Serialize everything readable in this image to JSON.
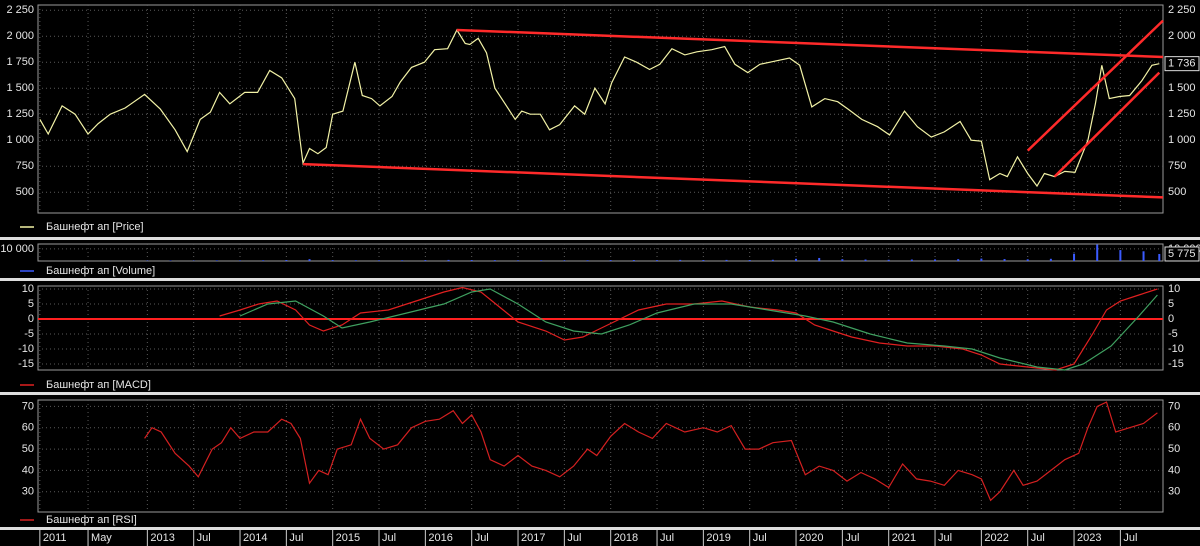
{
  "x_axis": {
    "xlim": [
      2011.82,
      2023.96
    ],
    "xticks": [
      {
        "value": 2011.84,
        "label": "2011"
      },
      {
        "value": 2012.36,
        "label": "May"
      },
      2013,
      {
        "value": 2013.5,
        "label": "Jul"
      },
      2014,
      {
        "value": 2014.5,
        "label": "Jul"
      },
      2015,
      {
        "value": 2015.5,
        "label": "Jul"
      },
      2016,
      {
        "value": 2016.5,
        "label": "Jul"
      },
      2017,
      {
        "value": 2017.5,
        "label": "Jul"
      },
      2018,
      {
        "value": 2018.5,
        "label": "Jul"
      },
      2019,
      {
        "value": 2019.5,
        "label": "Jul"
      },
      2020,
      {
        "value": 2020.5,
        "label": "Jul"
      },
      2021,
      {
        "value": 2021.5,
        "label": "Jul"
      },
      2022,
      {
        "value": 2022.5,
        "label": "Jul"
      },
      2023,
      {
        "value": 2023.5,
        "label": "Jul"
      }
    ]
  },
  "chart_data": [
    {
      "type": "line",
      "ylim": [
        300,
        2300
      ],
      "yticks": [
        {
          "value": 2250,
          "label": "2 250"
        },
        {
          "value": 2000,
          "label": "2 000"
        },
        {
          "value": 1750,
          "label": "1 750"
        },
        {
          "value": 1500,
          "label": "1 500"
        },
        {
          "value": 1250,
          "label": "1 250"
        },
        {
          "value": 1000,
          "label": "1 000"
        },
        750,
        500
      ],
      "grid": true,
      "last_label": "1 736",
      "series": [
        {
          "name": "Башнефт ап [Price]",
          "color": "#f2f2a6",
          "x": [
            2011.84,
            2011.93,
            2012.08,
            2012.22,
            2012.36,
            2012.47,
            2012.6,
            2012.76,
            2012.97,
            2013.14,
            2013.3,
            2013.43,
            2013.57,
            2013.68,
            2013.78,
            2013.89,
            2014.05,
            2014.19,
            2014.32,
            2014.45,
            2014.59,
            2014.68,
            2014.75,
            2014.84,
            2014.93,
            2015.0,
            2015.11,
            2015.24,
            2015.32,
            2015.42,
            2015.51,
            2015.64,
            2015.73,
            2015.85,
            2015.99,
            2016.1,
            2016.24,
            2016.34,
            2016.43,
            2016.48,
            2016.57,
            2016.66,
            2016.75,
            2016.86,
            2016.97,
            2017.04,
            2017.13,
            2017.24,
            2017.34,
            2017.45,
            2017.61,
            2017.72,
            2017.83,
            2017.94,
            2018.01,
            2018.15,
            2018.28,
            2018.42,
            2018.53,
            2018.66,
            2018.8,
            2018.93,
            2019.09,
            2019.23,
            2019.34,
            2019.48,
            2019.61,
            2019.77,
            2019.93,
            2020.04,
            2020.17,
            2020.31,
            2020.45,
            2020.56,
            2020.71,
            2020.88,
            2021.01,
            2021.17,
            2021.31,
            2021.46,
            2021.6,
            2021.77,
            2021.89,
            2022.0,
            2022.09,
            2022.2,
            2022.28,
            2022.39,
            2022.5,
            2022.6,
            2022.68,
            2022.79,
            2022.9,
            2023.01,
            2023.15,
            2023.23,
            2023.3,
            2023.38,
            2023.49,
            2023.6,
            2023.73,
            2023.84,
            2023.92
          ],
          "values": [
            1200,
            1060,
            1330,
            1250,
            1060,
            1160,
            1250,
            1310,
            1440,
            1300,
            1100,
            890,
            1200,
            1270,
            1460,
            1350,
            1460,
            1460,
            1670,
            1600,
            1400,
            780,
            920,
            870,
            930,
            1250,
            1280,
            1750,
            1430,
            1400,
            1330,
            1420,
            1560,
            1700,
            1750,
            1870,
            1880,
            2060,
            1930,
            1920,
            1980,
            1840,
            1500,
            1350,
            1200,
            1280,
            1250,
            1250,
            1100,
            1150,
            1330,
            1250,
            1500,
            1350,
            1550,
            1800,
            1750,
            1680,
            1730,
            1880,
            1820,
            1850,
            1870,
            1900,
            1730,
            1650,
            1730,
            1760,
            1790,
            1720,
            1320,
            1400,
            1370,
            1300,
            1200,
            1130,
            1050,
            1280,
            1130,
            1030,
            1080,
            1180,
            1000,
            990,
            620,
            680,
            650,
            840,
            680,
            560,
            680,
            650,
            700,
            690,
            1000,
            1350,
            1720,
            1400,
            1420,
            1430,
            1570,
            1720,
            1736
          ]
        }
      ],
      "trend_lines": [
        {
          "color": "#ff2a2a",
          "x": [
            2014.68,
            2023.96
          ],
          "y": [
            770,
            450
          ]
        },
        {
          "color": "#ff2a2a",
          "x": [
            2016.34,
            2023.96
          ],
          "y": [
            2060,
            1800
          ]
        },
        {
          "color": "#ff2a2a",
          "x": [
            2022.5,
            2023.96
          ],
          "y": [
            900,
            2150
          ]
        },
        {
          "color": "#ff2a2a",
          "x": [
            2022.79,
            2023.92
          ],
          "y": [
            650,
            1650
          ]
        }
      ]
    },
    {
      "type": "bar",
      "ylim": [
        0,
        14000
      ],
      "yticks": [
        {
          "value": 10000,
          "label": "10 000"
        }
      ],
      "grid": true,
      "last_label": "5 775",
      "series": [
        {
          "name": "Башнефт ап [Volume]",
          "color": "#3b5bff",
          "x": [
            2013.0,
            2013.25,
            2013.5,
            2013.75,
            2014.0,
            2014.25,
            2014.5,
            2014.75,
            2015.0,
            2015.25,
            2015.5,
            2015.75,
            2016.0,
            2016.25,
            2016.5,
            2016.75,
            2017.0,
            2017.25,
            2017.5,
            2017.75,
            2018.0,
            2018.25,
            2018.5,
            2018.75,
            2019.0,
            2019.25,
            2019.5,
            2019.75,
            2020.0,
            2020.25,
            2020.5,
            2020.75,
            2021.0,
            2021.25,
            2021.5,
            2021.75,
            2022.0,
            2022.25,
            2022.5,
            2022.75,
            2023.0,
            2023.25,
            2023.5,
            2023.75,
            2023.92
          ],
          "values": [
            300,
            400,
            300,
            500,
            400,
            600,
            800,
            1500,
            700,
            600,
            500,
            600,
            700,
            900,
            800,
            700,
            500,
            600,
            500,
            600,
            700,
            800,
            700,
            900,
            800,
            900,
            800,
            1000,
            1800,
            2500,
            1500,
            1200,
            1000,
            1200,
            1300,
            1500,
            2000,
            1600,
            1400,
            1800,
            6000,
            13500,
            9000,
            8000,
            5775
          ]
        }
      ]
    },
    {
      "type": "line",
      "ylim": [
        -17,
        11
      ],
      "yticks": [
        10,
        5,
        0,
        -5,
        -10,
        -15
      ],
      "grid": true,
      "zero_line": {
        "value": 0,
        "color": "#ff2020"
      },
      "series": [
        {
          "name": "Башнефт ап [MACD]",
          "color": "#e02020",
          "x": [
            2013.78,
            2014.0,
            2014.2,
            2014.4,
            2014.6,
            2014.75,
            2014.9,
            2015.1,
            2015.3,
            2015.6,
            2015.9,
            2016.2,
            2016.4,
            2016.6,
            2016.8,
            2017.0,
            2017.3,
            2017.5,
            2017.7,
            2017.9,
            2018.1,
            2018.3,
            2018.6,
            2018.9,
            2019.2,
            2019.5,
            2019.8,
            2020.0,
            2020.2,
            2020.4,
            2020.6,
            2020.9,
            2021.2,
            2021.5,
            2021.8,
            2022.0,
            2022.2,
            2022.5,
            2022.8,
            2023.0,
            2023.2,
            2023.35,
            2023.5,
            2023.7,
            2023.9
          ],
          "values": [
            1,
            3,
            5,
            6,
            3,
            -2,
            -4,
            -2,
            2,
            3,
            6,
            9,
            10.5,
            9,
            4,
            -1,
            -4,
            -7,
            -6,
            -3,
            0,
            3,
            5,
            5,
            6,
            4,
            3,
            2,
            -2,
            -4,
            -6,
            -8,
            -9,
            -9,
            -10,
            -12,
            -15,
            -16,
            -17,
            -15,
            -5,
            3,
            6,
            8,
            10
          ]
        },
        {
          "color": "#3fa060",
          "x": [
            2014.0,
            2014.3,
            2014.6,
            2014.9,
            2015.1,
            2015.4,
            2015.8,
            2016.2,
            2016.5,
            2016.7,
            2017.0,
            2017.3,
            2017.6,
            2017.9,
            2018.2,
            2018.5,
            2018.9,
            2019.3,
            2019.7,
            2020.1,
            2020.4,
            2020.8,
            2021.2,
            2021.6,
            2021.9,
            2022.2,
            2022.6,
            2022.9,
            2023.1,
            2023.4,
            2023.7,
            2023.9
          ],
          "values": [
            1,
            5,
            6,
            1,
            -3,
            -1,
            2,
            5,
            9,
            10,
            5,
            -1,
            -4,
            -5,
            -2,
            2,
            5,
            5,
            3,
            1,
            -1,
            -5,
            -8,
            -9,
            -10,
            -13,
            -16,
            -17,
            -15,
            -9,
            1,
            8
          ]
        }
      ]
    },
    {
      "type": "line",
      "ylim": [
        20.5,
        73
      ],
      "yticks": [
        70,
        60,
        50,
        40,
        30
      ],
      "grid": true,
      "series": [
        {
          "name": "Башнефт ап [RSI]",
          "color": "#d42020",
          "x": [
            2012.97,
            2013.05,
            2013.15,
            2013.3,
            2013.45,
            2013.55,
            2013.7,
            2013.8,
            2013.9,
            2014.0,
            2014.15,
            2014.3,
            2014.45,
            2014.55,
            2014.65,
            2014.75,
            2014.85,
            2014.95,
            2015.05,
            2015.2,
            2015.3,
            2015.4,
            2015.55,
            2015.7,
            2015.85,
            2016.0,
            2016.15,
            2016.3,
            2016.4,
            2016.5,
            2016.6,
            2016.7,
            2016.85,
            2017.0,
            2017.15,
            2017.3,
            2017.45,
            2017.6,
            2017.75,
            2017.85,
            2018.0,
            2018.15,
            2018.3,
            2018.45,
            2018.6,
            2018.8,
            2019.0,
            2019.15,
            2019.3,
            2019.45,
            2019.6,
            2019.75,
            2019.95,
            2020.1,
            2020.25,
            2020.4,
            2020.55,
            2020.7,
            2020.85,
            2021.0,
            2021.15,
            2021.3,
            2021.45,
            2021.6,
            2021.75,
            2021.9,
            2022.0,
            2022.1,
            2022.2,
            2022.35,
            2022.45,
            2022.6,
            2022.75,
            2022.9,
            2023.05,
            2023.15,
            2023.25,
            2023.35,
            2023.45,
            2023.6,
            2023.75,
            2023.9
          ],
          "values": [
            55,
            60,
            58,
            48,
            42,
            37,
            50,
            53,
            60,
            55,
            58,
            58,
            64,
            62,
            55,
            34,
            40,
            38,
            50,
            52,
            64,
            55,
            50,
            52,
            60,
            63,
            64,
            68,
            62,
            66,
            58,
            45,
            42,
            47,
            42,
            40,
            37,
            42,
            50,
            47,
            56,
            62,
            58,
            55,
            62,
            58,
            60,
            58,
            61,
            50,
            50,
            53,
            54,
            38,
            42,
            40,
            35,
            39,
            36,
            32,
            43,
            36,
            35,
            33,
            40,
            38,
            36,
            26,
            30,
            40,
            33,
            35,
            40,
            45,
            48,
            60,
            70,
            72,
            58,
            60,
            62,
            67
          ]
        }
      ]
    }
  ]
}
